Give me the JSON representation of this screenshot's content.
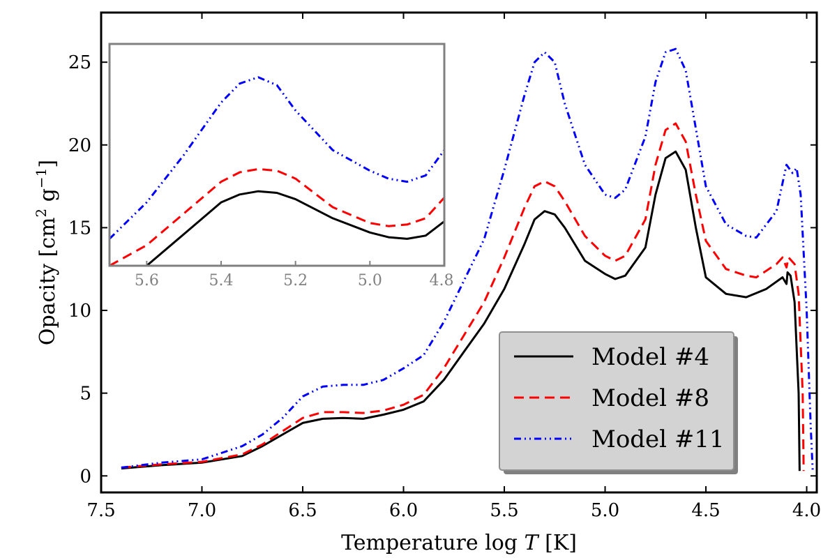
{
  "chart_data": {
    "type": "line",
    "xlabel": "Temperature log",
    "xlabel_var": "T",
    "xlabel_unit": "[K]",
    "ylabel": "Opacity [cm",
    "ylabel_sup1": "2",
    "ylabel_mid": " g",
    "ylabel_sup2": "−1",
    "ylabel_end": "]",
    "xlim": [
      7.5,
      3.95
    ],
    "ylim": [
      -1,
      28
    ],
    "x_ticks": [
      7.5,
      7.0,
      6.5,
      6.0,
      5.5,
      5.0,
      4.5,
      4.0
    ],
    "x_tick_labels": [
      "7.5",
      "7.0",
      "6.5",
      "6.0",
      "5.5",
      "5.0",
      "4.5",
      "4.0"
    ],
    "y_ticks": [
      0,
      5,
      10,
      15,
      20,
      25
    ],
    "y_tick_labels": [
      "0",
      "5",
      "10",
      "15",
      "20",
      "25"
    ],
    "legend_position": "lower-right",
    "series": [
      {
        "name": "Model #4",
        "color": "#000000",
        "style": "solid",
        "points": [
          [
            7.4,
            0.45
          ],
          [
            7.2,
            0.65
          ],
          [
            7.0,
            0.8
          ],
          [
            6.8,
            1.2
          ],
          [
            6.7,
            1.8
          ],
          [
            6.6,
            2.5
          ],
          [
            6.5,
            3.2
          ],
          [
            6.4,
            3.45
          ],
          [
            6.3,
            3.5
          ],
          [
            6.2,
            3.45
          ],
          [
            6.1,
            3.7
          ],
          [
            6.0,
            4.0
          ],
          [
            5.9,
            4.5
          ],
          [
            5.8,
            5.8
          ],
          [
            5.7,
            7.5
          ],
          [
            5.6,
            9.2
          ],
          [
            5.5,
            11.3
          ],
          [
            5.4,
            14.0
          ],
          [
            5.35,
            15.5
          ],
          [
            5.3,
            16.0
          ],
          [
            5.25,
            15.8
          ],
          [
            5.2,
            15.0
          ],
          [
            5.1,
            13.0
          ],
          [
            5.0,
            12.2
          ],
          [
            4.95,
            11.9
          ],
          [
            4.9,
            12.1
          ],
          [
            4.8,
            13.8
          ],
          [
            4.75,
            17.0
          ],
          [
            4.7,
            19.2
          ],
          [
            4.65,
            19.6
          ],
          [
            4.6,
            18.5
          ],
          [
            4.55,
            15.0
          ],
          [
            4.5,
            12.0
          ],
          [
            4.4,
            11.0
          ],
          [
            4.3,
            10.8
          ],
          [
            4.2,
            11.3
          ],
          [
            4.12,
            12.0
          ],
          [
            4.1,
            11.6
          ],
          [
            4.095,
            12.3
          ],
          [
            4.08,
            12.1
          ],
          [
            4.06,
            10.5
          ],
          [
            4.04,
            5.0
          ],
          [
            4.035,
            0.3
          ]
        ]
      },
      {
        "name": "Model #8",
        "color": "#ff0000",
        "style": "dashed",
        "points": [
          [
            7.4,
            0.5
          ],
          [
            7.2,
            0.7
          ],
          [
            7.0,
            0.85
          ],
          [
            6.8,
            1.3
          ],
          [
            6.7,
            1.9
          ],
          [
            6.6,
            2.7
          ],
          [
            6.5,
            3.5
          ],
          [
            6.4,
            3.85
          ],
          [
            6.3,
            3.85
          ],
          [
            6.2,
            3.8
          ],
          [
            6.1,
            3.95
          ],
          [
            6.0,
            4.3
          ],
          [
            5.9,
            4.9
          ],
          [
            5.8,
            6.5
          ],
          [
            5.7,
            8.5
          ],
          [
            5.6,
            10.5
          ],
          [
            5.5,
            13.2
          ],
          [
            5.4,
            16.2
          ],
          [
            5.35,
            17.5
          ],
          [
            5.3,
            17.8
          ],
          [
            5.25,
            17.5
          ],
          [
            5.2,
            16.6
          ],
          [
            5.1,
            14.5
          ],
          [
            5.0,
            13.3
          ],
          [
            4.95,
            13.0
          ],
          [
            4.9,
            13.3
          ],
          [
            4.8,
            15.5
          ],
          [
            4.75,
            18.8
          ],
          [
            4.7,
            20.9
          ],
          [
            4.65,
            21.3
          ],
          [
            4.6,
            20.2
          ],
          [
            4.55,
            17.0
          ],
          [
            4.5,
            14.2
          ],
          [
            4.4,
            12.5
          ],
          [
            4.3,
            12.1
          ],
          [
            4.25,
            12.0
          ],
          [
            4.15,
            12.8
          ],
          [
            4.12,
            13.2
          ],
          [
            4.1,
            12.6
          ],
          [
            4.09,
            13.2
          ],
          [
            4.06,
            12.8
          ],
          [
            4.04,
            11.0
          ],
          [
            4.02,
            5.0
          ],
          [
            4.015,
            0.3
          ]
        ]
      },
      {
        "name": "Model #11",
        "color": "#0000ff",
        "style": "dashdot",
        "points": [
          [
            7.4,
            0.5
          ],
          [
            7.2,
            0.8
          ],
          [
            7.0,
            1.0
          ],
          [
            6.8,
            1.8
          ],
          [
            6.7,
            2.5
          ],
          [
            6.6,
            3.5
          ],
          [
            6.5,
            4.8
          ],
          [
            6.4,
            5.4
          ],
          [
            6.3,
            5.5
          ],
          [
            6.2,
            5.5
          ],
          [
            6.1,
            5.8
          ],
          [
            6.0,
            6.5
          ],
          [
            5.9,
            7.3
          ],
          [
            5.8,
            9.3
          ],
          [
            5.7,
            11.8
          ],
          [
            5.6,
            14.3
          ],
          [
            5.5,
            18.5
          ],
          [
            5.4,
            23.0
          ],
          [
            5.35,
            25.0
          ],
          [
            5.3,
            25.6
          ],
          [
            5.25,
            25.0
          ],
          [
            5.2,
            22.5
          ],
          [
            5.1,
            18.8
          ],
          [
            5.0,
            17.0
          ],
          [
            4.95,
            16.8
          ],
          [
            4.9,
            17.3
          ],
          [
            4.8,
            20.5
          ],
          [
            4.75,
            23.8
          ],
          [
            4.7,
            25.6
          ],
          [
            4.65,
            25.8
          ],
          [
            4.6,
            24.5
          ],
          [
            4.55,
            21.0
          ],
          [
            4.5,
            17.5
          ],
          [
            4.4,
            15.2
          ],
          [
            4.3,
            14.5
          ],
          [
            4.25,
            14.4
          ],
          [
            4.15,
            16.0
          ],
          [
            4.1,
            18.8
          ],
          [
            4.07,
            18.3
          ],
          [
            4.05,
            18.6
          ],
          [
            4.03,
            17.0
          ],
          [
            4.0,
            10.0
          ],
          [
            3.98,
            3.0
          ],
          [
            3.97,
            0.3
          ]
        ]
      }
    ],
    "inset": {
      "xlim": [
        5.7,
        4.8
      ],
      "ylim": [
        12.5,
        26.5
      ],
      "x_ticks": [
        5.6,
        5.4,
        5.2,
        5.0,
        4.8
      ],
      "x_tick_labels": [
        "5.6",
        "5.4",
        "5.2",
        "5.0",
        "4.8"
      ],
      "frame_color": "#808080",
      "series": [
        {
          "name": "Model #4",
          "points": [
            [
              5.7,
              11.5
            ],
            [
              5.6,
              12.5
            ],
            [
              5.5,
              14.5
            ],
            [
              5.4,
              16.5
            ],
            [
              5.35,
              17.0
            ],
            [
              5.3,
              17.2
            ],
            [
              5.25,
              17.1
            ],
            [
              5.2,
              16.7
            ],
            [
              5.1,
              15.5
            ],
            [
              5.0,
              14.6
            ],
            [
              4.95,
              14.3
            ],
            [
              4.9,
              14.2
            ],
            [
              4.85,
              14.4
            ],
            [
              4.8,
              15.3
            ]
          ]
        },
        {
          "name": "Model #8",
          "points": [
            [
              5.7,
              12.5
            ],
            [
              5.6,
              13.8
            ],
            [
              5.5,
              15.8
            ],
            [
              5.4,
              17.8
            ],
            [
              5.35,
              18.4
            ],
            [
              5.3,
              18.6
            ],
            [
              5.25,
              18.5
            ],
            [
              5.2,
              18.0
            ],
            [
              5.1,
              16.2
            ],
            [
              5.0,
              15.2
            ],
            [
              4.95,
              15.0
            ],
            [
              4.9,
              15.1
            ],
            [
              4.85,
              15.5
            ],
            [
              4.8,
              16.8
            ]
          ]
        },
        {
          "name": "Model #11",
          "points": [
            [
              5.7,
              14.2
            ],
            [
              5.6,
              16.5
            ],
            [
              5.5,
              19.5
            ],
            [
              5.4,
              22.8
            ],
            [
              5.35,
              24.0
            ],
            [
              5.3,
              24.4
            ],
            [
              5.25,
              23.9
            ],
            [
              5.2,
              22.3
            ],
            [
              5.1,
              19.8
            ],
            [
              5.0,
              18.5
            ],
            [
              4.95,
              18.0
            ],
            [
              4.9,
              17.8
            ],
            [
              4.85,
              18.2
            ],
            [
              4.8,
              19.8
            ]
          ]
        }
      ]
    }
  }
}
